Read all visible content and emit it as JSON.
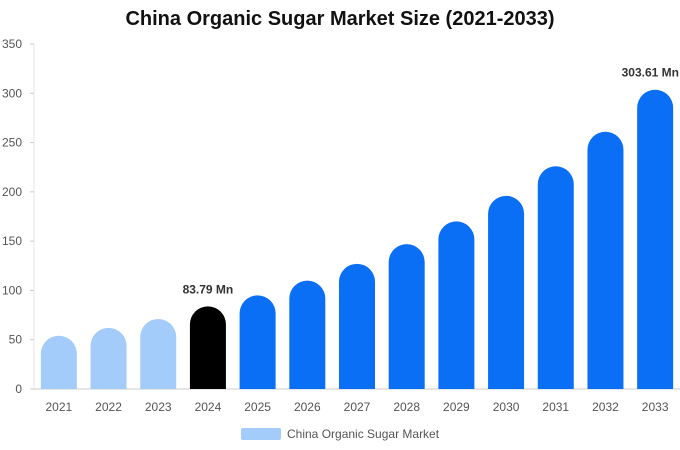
{
  "chart_data": {
    "type": "bar",
    "title": "China Organic Sugar Market Size (2021-2033)",
    "categories": [
      "2021",
      "2022",
      "2023",
      "2024",
      "2025",
      "2026",
      "2027",
      "2028",
      "2029",
      "2030",
      "2031",
      "2032",
      "2033"
    ],
    "series": [
      {
        "name": "China Organic Sugar Market",
        "values": [
          54,
          62,
          71,
          83.79,
          95,
          110,
          127,
          147,
          170,
          196,
          226,
          261,
          303.61
        ]
      }
    ],
    "bar_colors": [
      "#a3ccfb",
      "#a3ccfb",
      "#a3ccfb",
      "#000000",
      "#0a6ff5",
      "#0a6ff5",
      "#0a6ff5",
      "#0a6ff5",
      "#0a6ff5",
      "#0a6ff5",
      "#0a6ff5",
      "#0a6ff5",
      "#0a6ff5"
    ],
    "data_labels": [
      {
        "category": "2024",
        "text": "83.79 Mn"
      },
      {
        "category": "2033",
        "text": "303.61 Mn"
      }
    ],
    "ylim": [
      0,
      350
    ],
    "yticks": [
      0,
      50,
      100,
      150,
      200,
      250,
      300,
      350
    ],
    "xlabel": "",
    "ylabel": "",
    "grid": false,
    "legend": {
      "label": "China Organic Sugar Market",
      "color": "#a3ccfb",
      "position": "bottom-center"
    }
  }
}
